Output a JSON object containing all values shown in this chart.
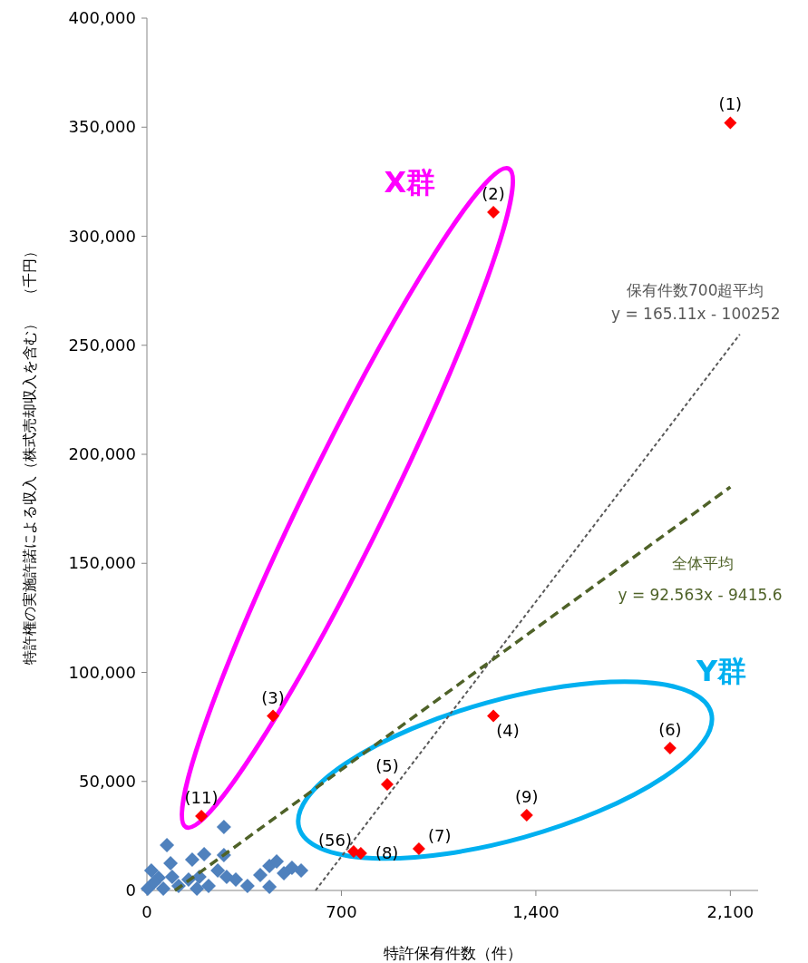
{
  "chart_data": {
    "type": "scatter",
    "xlabel": "特許保有件数（件）",
    "ylabel": "特許権の実施許諾による収入（株式売却収入を含む）　（千円）",
    "xlim": [
      0,
      2200
    ],
    "xticks": [
      0,
      700,
      {
        "value": 1400,
        "label": "1,400"
      },
      {
        "value": 2100,
        "label": "2,100"
      }
    ],
    "ylim": [
      0,
      400000
    ],
    "yticks": [
      0,
      {
        "value": 50000,
        "label": "50,000"
      },
      {
        "value": 100000,
        "label": "100,000"
      },
      {
        "value": 150000,
        "label": "150,000"
      },
      {
        "value": 200000,
        "label": "200,000"
      },
      {
        "value": 250000,
        "label": "250,000"
      },
      {
        "value": 300000,
        "label": "300,000"
      },
      {
        "value": 350000,
        "label": "350,000"
      },
      {
        "value": 400000,
        "label": "400,000"
      }
    ],
    "grid": false,
    "legend": false,
    "marker": "diamond",
    "series": [
      {
        "type": "scatter",
        "color": "#4f81bd",
        "x": [
          277,
          72,
          163,
          206,
          277,
          85,
          16,
          42,
          3,
          59,
          114,
          150,
          189,
          222,
          255,
          287,
          320,
          362,
          408,
          441,
          467,
          493,
          441,
          522,
          555,
          91,
          26,
          180
        ],
        "values": [
          29100,
          20800,
          14100,
          16600,
          16200,
          12500,
          9100,
          5800,
          800,
          800,
          2100,
          5000,
          6200,
          2100,
          9100,
          6200,
          5000,
          2100,
          7100,
          11200,
          13300,
          7900,
          1700,
          10400,
          9100,
          6200,
          3700,
          800
        ]
      },
      {
        "type": "scatter",
        "color": "#ff0000",
        "x": [
          2100,
          1247,
          454,
          1247,
          865,
          1883,
          979,
          770,
          744,
          1367,
          196
        ],
        "values": [
          352000,
          311000,
          80000,
          80000,
          48600,
          65300,
          19100,
          17000,
          17900,
          34500,
          34100
        ]
      },
      {
        "type": "line",
        "name": "保有件数700超平均",
        "color": "#595959",
        "line_style": "dashed",
        "marker": "none",
        "x": [
          607,
          2134
        ],
        "values": [
          0,
          255000
        ]
      },
      {
        "type": "line",
        "name": "全体平均",
        "color": "#4f6228",
        "line_style": "dashed",
        "marker": "none",
        "x": [
          101,
          2100
        ],
        "values": [
          0,
          185000
        ]
      }
    ],
    "annotations": [
      {
        "text": "(1)",
        "x": 2100,
        "y": 352000
      },
      {
        "text": "(2)",
        "x": 1247,
        "y": 311000
      },
      {
        "text": "(3)",
        "x": 454,
        "y": 80000
      },
      {
        "text": "(4)",
        "x": 1247,
        "y": 80000
      },
      {
        "text": "(5)",
        "x": 865,
        "y": 48600
      },
      {
        "text": "(6)",
        "x": 1883,
        "y": 65300
      },
      {
        "text": "(7)",
        "x": 979,
        "y": 19100
      },
      {
        "text": "(8)",
        "x": 770,
        "y": 17000
      },
      {
        "text": "(56)",
        "x": 744,
        "y": 17900
      },
      {
        "text": "(9)",
        "x": 1367,
        "y": 34500
      },
      {
        "text": "(11)",
        "x": 196,
        "y": 34100
      },
      "y = 165.11x - 100252",
      "y = 92.563x - 9415.6",
      "X群",
      "Y群"
    ]
  }
}
